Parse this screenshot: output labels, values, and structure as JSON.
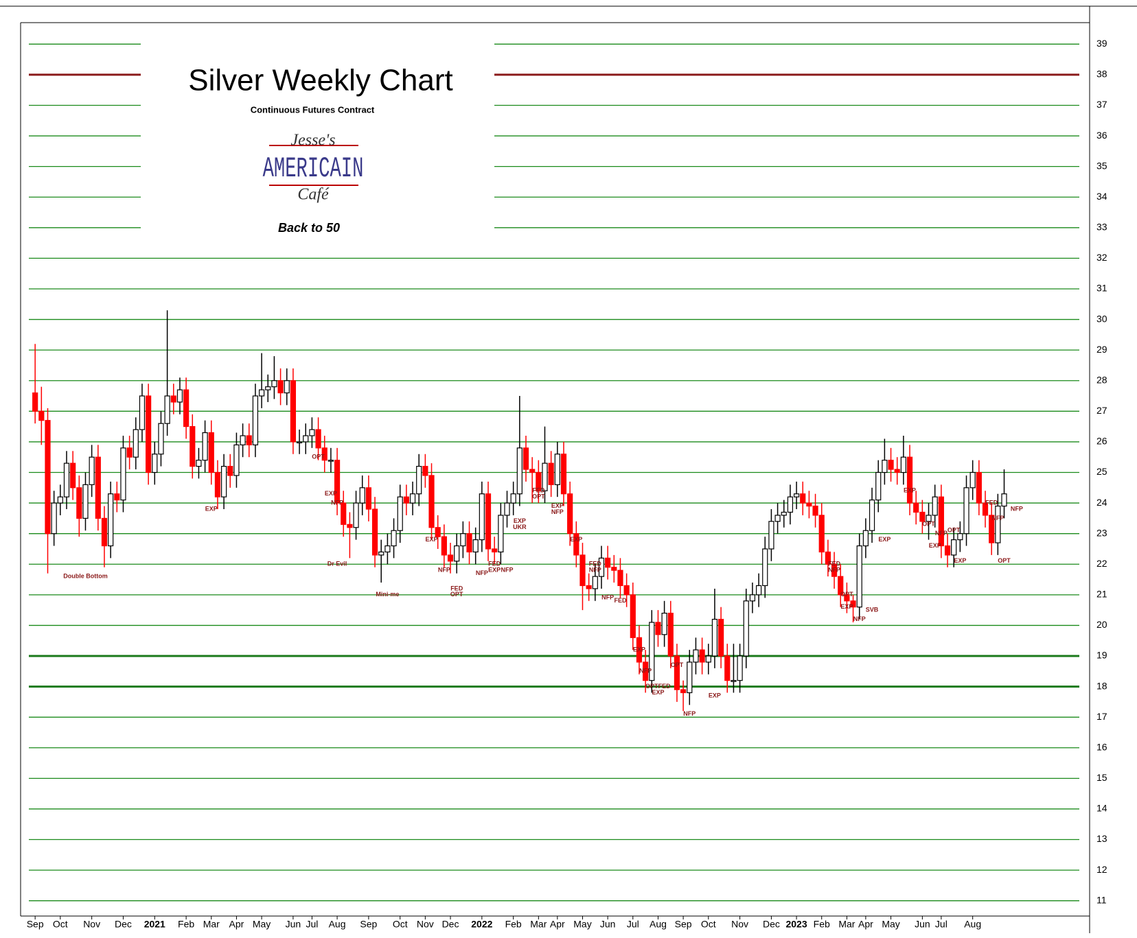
{
  "chart_data": {
    "type": "candlestick",
    "title": "Silver Weekly Chart",
    "subtitle": "Continuous Futures Contract",
    "logo": [
      "Jesse's",
      "AMERICAIN",
      "Café"
    ],
    "tagline": "Back to 50",
    "up_color": "#ffffff",
    "down_color": "#ff0000",
    "grid": true,
    "grid_color": "#1a8a1a",
    "reference_lines": [
      {
        "value": 38,
        "color": "#8b1a1a"
      },
      {
        "value": 19,
        "color": "#1a7a1a"
      },
      {
        "value": 18,
        "color": "#1a7a1a"
      }
    ],
    "ylim": [
      10.5,
      39.5
    ],
    "yticks": [
      11,
      12,
      13,
      14,
      15,
      16,
      17,
      18,
      19,
      20,
      21,
      22,
      23,
      24,
      25,
      26,
      27,
      28,
      29,
      30,
      31,
      32,
      33,
      34,
      35,
      36,
      37,
      38,
      39
    ],
    "xlim": [
      -1,
      157
    ],
    "xticks": [
      {
        "value": 0,
        "label": "Sep"
      },
      {
        "value": 4,
        "label": "Oct"
      },
      {
        "value": 9,
        "label": "Nov"
      },
      {
        "value": 14,
        "label": "Dec"
      },
      {
        "value": 19,
        "label": "2021"
      },
      {
        "value": 24,
        "label": "Feb"
      },
      {
        "value": 28,
        "label": "Mar"
      },
      {
        "value": 32,
        "label": "Apr"
      },
      {
        "value": 36,
        "label": "May"
      },
      {
        "value": 41,
        "label": "Jun"
      },
      {
        "value": 44,
        "label": "Jul"
      },
      {
        "value": 48,
        "label": "Aug"
      },
      {
        "value": 53,
        "label": "Sep"
      },
      {
        "value": 58,
        "label": "Oct"
      },
      {
        "value": 62,
        "label": "Nov"
      },
      {
        "value": 66,
        "label": "Dec"
      },
      {
        "value": 71,
        "label": "2022"
      },
      {
        "value": 76,
        "label": "Feb"
      },
      {
        "value": 80,
        "label": "Mar"
      },
      {
        "value": 83,
        "label": "Apr"
      },
      {
        "value": 87,
        "label": "May"
      },
      {
        "value": 91,
        "label": "Jun"
      },
      {
        "value": 95,
        "label": "Jul"
      },
      {
        "value": 99,
        "label": "Aug"
      },
      {
        "value": 103,
        "label": "Sep"
      },
      {
        "value": 107,
        "label": "Oct"
      },
      {
        "value": 112,
        "label": "Nov"
      },
      {
        "value": 117,
        "label": "Dec"
      },
      {
        "value": 121,
        "label": "2023"
      },
      {
        "value": 125,
        "label": "Feb"
      },
      {
        "value": 129,
        "label": "Mar"
      },
      {
        "value": 132,
        "label": "Apr"
      },
      {
        "value": 136,
        "label": "May"
      },
      {
        "value": 141,
        "label": "Jun"
      },
      {
        "value": 144,
        "label": "Jul"
      },
      {
        "value": 149,
        "label": "Aug"
      }
    ],
    "open": [
      27.6,
      27.0,
      26.7,
      23.0,
      24.0,
      24.2,
      25.3,
      24.5,
      23.5,
      24.6,
      25.5,
      23.5,
      22.6,
      24.3,
      24.1,
      25.8,
      25.5,
      26.4,
      27.5,
      25.0,
      25.6,
      26.6,
      27.5,
      27.3,
      27.7,
      26.5,
      25.2,
      25.4,
      26.3,
      25.0,
      24.2,
      25.2,
      24.9,
      25.9,
      26.2,
      25.9,
      27.5,
      27.7,
      27.8,
      28.0,
      27.6,
      28.0,
      26.0,
      26.0,
      26.2,
      26.4,
      25.8,
      25.4,
      25.4,
      24.0,
      23.3,
      23.2,
      24.0,
      24.5,
      23.8,
      22.3,
      22.4,
      22.6,
      23.1,
      24.2,
      24.0,
      24.3,
      25.2,
      24.9,
      23.2,
      22.9,
      22.3,
      22.1,
      22.6,
      23.0,
      22.4,
      22.8,
      24.3,
      22.5,
      22.4,
      23.6,
      24.0,
      24.3,
      25.8,
      25.1,
      25.0,
      24.4,
      25.3,
      24.6,
      25.6,
      24.3,
      23.0,
      22.3,
      21.3,
      21.2,
      21.6,
      22.2,
      21.9,
      21.8,
      21.3,
      21.0,
      19.6,
      18.8,
      18.2,
      20.1,
      19.7,
      20.4,
      19.0,
      17.9,
      17.8,
      18.8,
      19.2,
      18.8,
      19.0,
      20.2,
      19.0,
      18.2,
      18.2,
      19.0,
      20.8,
      21.0,
      21.3,
      22.5,
      23.4,
      23.6,
      23.7,
      24.2,
      24.3,
      24.0,
      23.9,
      23.6,
      22.4,
      22.0,
      21.6,
      21.0,
      20.8,
      20.6,
      22.6,
      23.1,
      24.1,
      25.0,
      25.4,
      25.1,
      25.0,
      25.5,
      24.0,
      23.7,
      23.4,
      23.6,
      24.2,
      22.6,
      22.3,
      22.8,
      23.0,
      24.5,
      25.0,
      24.0,
      23.6,
      22.7,
      23.9
    ],
    "high": [
      29.2,
      27.8,
      27.1,
      24.4,
      24.6,
      25.7,
      25.7,
      24.9,
      25.0,
      25.9,
      25.9,
      23.9,
      24.7,
      24.7,
      26.2,
      26.2,
      26.8,
      27.9,
      27.9,
      26.0,
      27.0,
      30.3,
      27.9,
      28.1,
      28.1,
      26.9,
      25.8,
      26.7,
      26.7,
      25.4,
      25.6,
      25.6,
      26.3,
      26.6,
      26.6,
      27.9,
      28.9,
      28.2,
      28.8,
      28.4,
      28.4,
      28.4,
      26.4,
      26.6,
      26.8,
      26.8,
      26.2,
      25.8,
      25.8,
      24.4,
      23.7,
      24.4,
      24.9,
      24.9,
      24.2,
      22.8,
      23.0,
      23.5,
      24.6,
      24.6,
      24.7,
      25.6,
      25.6,
      25.3,
      23.6,
      23.3,
      22.7,
      23.0,
      23.4,
      23.4,
      23.2,
      24.7,
      24.7,
      22.9,
      24.0,
      24.4,
      24.7,
      27.5,
      26.2,
      25.5,
      25.4,
      26.5,
      25.7,
      26.0,
      26.0,
      24.7,
      23.4,
      22.7,
      21.7,
      22.0,
      22.6,
      22.6,
      22.3,
      22.2,
      21.7,
      21.4,
      20.0,
      19.2,
      20.5,
      20.5,
      20.8,
      20.8,
      19.4,
      18.2,
      19.2,
      19.6,
      19.6,
      19.4,
      21.2,
      20.6,
      19.4,
      19.4,
      19.4,
      21.2,
      21.4,
      21.7,
      22.9,
      23.8,
      24.0,
      24.1,
      24.6,
      24.7,
      24.7,
      24.4,
      24.3,
      24.0,
      22.8,
      22.4,
      22.0,
      21.4,
      21.0,
      23.0,
      23.5,
      24.5,
      25.4,
      26.1,
      25.8,
      25.5,
      26.2,
      25.9,
      24.4,
      24.1,
      24.0,
      24.6,
      24.6,
      23.0,
      23.2,
      23.4,
      24.9,
      25.4,
      25.4,
      24.4,
      24.0,
      24.3,
      25.1
    ],
    "low": [
      26.6,
      25.9,
      21.7,
      22.6,
      23.6,
      23.8,
      24.1,
      22.9,
      23.1,
      24.2,
      23.1,
      21.9,
      22.2,
      23.7,
      23.7,
      25.1,
      25.1,
      26.0,
      24.6,
      24.6,
      25.2,
      26.2,
      26.9,
      26.9,
      26.1,
      24.8,
      24.8,
      25.0,
      24.6,
      23.8,
      23.8,
      24.5,
      24.5,
      25.5,
      25.5,
      25.5,
      27.1,
      27.3,
      27.4,
      27.2,
      27.2,
      25.6,
      25.6,
      25.6,
      25.8,
      25.4,
      25.0,
      25.0,
      23.6,
      22.9,
      22.2,
      22.8,
      23.6,
      23.4,
      21.9,
      21.4,
      22.0,
      22.2,
      22.7,
      23.6,
      23.6,
      23.9,
      24.5,
      22.8,
      22.5,
      21.9,
      21.7,
      21.7,
      22.2,
      22.0,
      22.0,
      22.4,
      22.1,
      22.0,
      22.0,
      23.2,
      23.6,
      23.9,
      24.7,
      24.0,
      24.0,
      24.0,
      24.2,
      24.2,
      23.9,
      22.6,
      21.9,
      20.5,
      20.8,
      20.8,
      21.2,
      21.5,
      21.4,
      20.9,
      20.6,
      19.2,
      18.4,
      17.8,
      17.8,
      19.3,
      19.3,
      18.6,
      17.5,
      17.2,
      17.4,
      18.4,
      18.4,
      18.4,
      18.6,
      18.6,
      17.8,
      17.8,
      17.8,
      18.6,
      20.4,
      20.6,
      20.9,
      22.1,
      23.0,
      23.2,
      23.3,
      23.8,
      23.6,
      23.5,
      23.2,
      22.0,
      21.6,
      21.2,
      20.6,
      20.4,
      20.1,
      20.2,
      22.2,
      22.7,
      23.7,
      24.6,
      24.7,
      24.6,
      24.6,
      23.6,
      23.3,
      23.0,
      22.8,
      23.2,
      22.2,
      21.9,
      21.9,
      22.4,
      22.6,
      24.1,
      23.6,
      23.2,
      22.3,
      22.3,
      23.5
    ],
    "close": [
      27.0,
      26.7,
      23.0,
      24.0,
      24.2,
      25.3,
      24.5,
      23.5,
      24.6,
      25.5,
      23.5,
      22.6,
      24.3,
      24.1,
      25.8,
      25.5,
      26.4,
      27.5,
      25.0,
      25.6,
      26.6,
      27.5,
      27.3,
      27.7,
      26.5,
      25.2,
      25.4,
      26.3,
      25.0,
      24.2,
      25.2,
      24.9,
      25.9,
      26.2,
      25.9,
      27.5,
      27.7,
      27.8,
      28.0,
      27.6,
      28.0,
      26.0,
      26.0,
      26.2,
      26.4,
      25.8,
      25.4,
      25.4,
      24.0,
      23.3,
      23.2,
      24.0,
      24.5,
      23.8,
      22.3,
      22.4,
      22.6,
      23.1,
      24.2,
      24.0,
      24.3,
      25.2,
      24.9,
      23.2,
      22.9,
      22.3,
      22.1,
      22.6,
      23.0,
      22.4,
      22.8,
      24.3,
      22.5,
      22.4,
      23.6,
      24.0,
      24.3,
      25.8,
      25.1,
      25.0,
      24.4,
      25.3,
      24.6,
      25.6,
      24.3,
      23.0,
      22.3,
      21.3,
      21.2,
      21.6,
      22.2,
      21.9,
      21.8,
      21.3,
      21.0,
      19.6,
      18.8,
      18.2,
      20.1,
      19.7,
      20.4,
      19.0,
      17.9,
      17.8,
      18.8,
      19.2,
      18.8,
      19.0,
      20.2,
      19.0,
      18.2,
      18.2,
      19.0,
      20.8,
      21.0,
      21.3,
      22.5,
      23.4,
      23.6,
      23.7,
      24.2,
      24.3,
      24.0,
      23.9,
      23.6,
      22.4,
      22.0,
      21.6,
      21.0,
      20.8,
      20.6,
      22.6,
      23.1,
      24.1,
      25.0,
      25.4,
      25.1,
      25.0,
      25.5,
      24.0,
      23.7,
      23.4,
      23.6,
      24.2,
      22.6,
      22.3,
      22.8,
      23.0,
      24.5,
      25.0,
      24.0,
      23.6,
      22.7,
      23.9,
      24.3
    ],
    "annotations": [
      {
        "text": "Double Bottom",
        "index": 8,
        "price": 21.6
      },
      {
        "text": "EXP",
        "index": 28,
        "price": 23.8
      },
      {
        "text": "OPT",
        "index": 45,
        "price": 25.5
      },
      {
        "text": "EXP",
        "index": 47,
        "price": 24.3
      },
      {
        "text": "NFP",
        "index": 48,
        "price": 24.0
      },
      {
        "text": "Dr Evil",
        "index": 48,
        "price": 22.0
      },
      {
        "text": "Mini-me",
        "index": 56,
        "price": 21.0
      },
      {
        "text": "EXP",
        "index": 63,
        "price": 22.8
      },
      {
        "text": "NFP",
        "index": 65,
        "price": 21.8
      },
      {
        "text": "FED",
        "index": 67,
        "price": 21.2
      },
      {
        "text": "OPT",
        "index": 67,
        "price": 21.0
      },
      {
        "text": "NFP",
        "index": 71,
        "price": 21.7
      },
      {
        "text": "FED",
        "index": 73,
        "price": 22.0
      },
      {
        "text": "EXP",
        "index": 73,
        "price": 21.8
      },
      {
        "text": "NFP",
        "index": 75,
        "price": 21.8
      },
      {
        "text": "EXP",
        "index": 77,
        "price": 23.4
      },
      {
        "text": "UKR",
        "index": 77,
        "price": 23.2
      },
      {
        "text": "FED",
        "index": 80,
        "price": 24.4
      },
      {
        "text": "OPT",
        "index": 80,
        "price": 24.2
      },
      {
        "text": "EXP",
        "index": 83,
        "price": 23.9
      },
      {
        "text": "NFP",
        "index": 83,
        "price": 23.7
      },
      {
        "text": "EXP",
        "index": 86,
        "price": 22.8
      },
      {
        "text": "FED",
        "index": 89,
        "price": 22.0
      },
      {
        "text": "NFP",
        "index": 89,
        "price": 21.8
      },
      {
        "text": "NFP",
        "index": 91,
        "price": 20.9
      },
      {
        "text": "FED",
        "index": 93,
        "price": 20.8
      },
      {
        "text": "EXP",
        "index": 96,
        "price": 19.2
      },
      {
        "text": "NFP",
        "index": 97,
        "price": 18.5
      },
      {
        "text": "OPT",
        "index": 98,
        "price": 18.0
      },
      {
        "text": "FED",
        "index": 100,
        "price": 18.0
      },
      {
        "text": "EXP",
        "index": 99,
        "price": 17.8
      },
      {
        "text": "OPT",
        "index": 102,
        "price": 18.7
      },
      {
        "text": "NFP",
        "index": 104,
        "price": 17.1
      },
      {
        "text": "EXP",
        "index": 108,
        "price": 17.7
      },
      {
        "text": "FED",
        "index": 127,
        "price": 22.0
      },
      {
        "text": "NFP",
        "index": 127,
        "price": 21.8
      },
      {
        "text": "OPT",
        "index": 129,
        "price": 21.0
      },
      {
        "text": "EXP",
        "index": 129,
        "price": 20.6
      },
      {
        "text": "NFP",
        "index": 131,
        "price": 20.2
      },
      {
        "text": "SVB",
        "index": 133,
        "price": 20.5
      },
      {
        "text": "EXP",
        "index": 135,
        "price": 22.8
      },
      {
        "text": "EXP",
        "index": 139,
        "price": 24.4
      },
      {
        "text": "OPT",
        "index": 142,
        "price": 23.3
      },
      {
        "text": "NFP",
        "index": 144,
        "price": 23.0
      },
      {
        "text": "EXP",
        "index": 143,
        "price": 22.6
      },
      {
        "text": "OPT",
        "index": 146,
        "price": 23.1
      },
      {
        "text": "EXP",
        "index": 147,
        "price": 22.1
      },
      {
        "text": "FED",
        "index": 152,
        "price": 24.0
      },
      {
        "text": "NFP",
        "index": 153,
        "price": 23.5
      },
      {
        "text": "OPT",
        "index": 154,
        "price": 22.1
      },
      {
        "text": "NFP",
        "index": 156,
        "price": 23.8
      }
    ]
  }
}
